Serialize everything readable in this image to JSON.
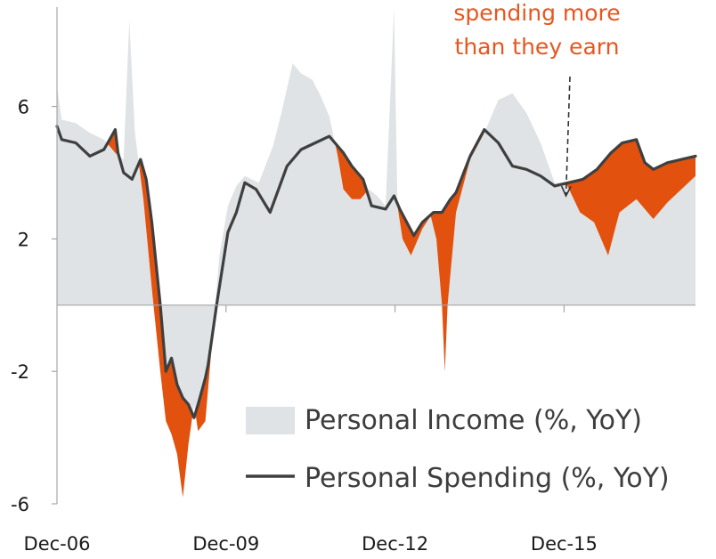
{
  "chart_data": {
    "type": "area",
    "x_tick_labels": [
      "Dec-06",
      "Dec-09",
      "Dec-12",
      "Dec-15"
    ],
    "x_tick_values": [
      2006.917,
      2009.917,
      2012.917,
      2015.917
    ],
    "xlim": [
      2006.917,
      2018.25
    ],
    "y_tick_labels": [
      "6",
      "2",
      "-2",
      "-6"
    ],
    "y_tick_values": [
      6,
      2,
      -2,
      -6
    ],
    "ylim": [
      -6,
      9
    ],
    "legend_position": "bottom-right",
    "annotation": {
      "lines": [
        "spending more",
        "than they  earn"
      ],
      "target": [
        2015.95,
        3.3
      ]
    },
    "colors": {
      "income_fill": "#dfe3e5",
      "spending_line": "#3f3f3f",
      "gap_fill": "#e2520e",
      "annotation_text": "#e8561f",
      "axis": "#a6a6a6"
    },
    "series": [
      {
        "name": "Personal Income (%, YoY)",
        "kind": "area",
        "x": [
          2006.917,
          2007.0,
          2007.25,
          2007.5,
          2007.75,
          2007.95,
          2008.1,
          2008.2,
          2008.3,
          2008.45,
          2008.6,
          2008.75,
          2008.85,
          2008.95,
          2009.05,
          2009.15,
          2009.25,
          2009.35,
          2009.42,
          2009.55,
          2009.65,
          2009.8,
          2009.95,
          2010.1,
          2010.25,
          2010.5,
          2010.75,
          2010.9,
          2011.1,
          2011.25,
          2011.45,
          2011.6,
          2011.75,
          2011.9,
          2012.0,
          2012.15,
          2012.3,
          2012.45,
          2012.6,
          2012.75,
          2012.9,
          2012.96,
          2013.05,
          2013.2,
          2013.4,
          2013.55,
          2013.65,
          2013.75,
          2013.8,
          2013.85,
          2014.0,
          2014.25,
          2014.5,
          2014.75,
          2015.0,
          2015.25,
          2015.5,
          2015.75,
          2015.95,
          2016.2,
          2016.45,
          2016.7,
          2016.9,
          2017.2,
          2017.5,
          2017.75,
          2018.0,
          2018.25
        ],
        "y": [
          6.6,
          5.6,
          5.5,
          5.2,
          5.0,
          4.6,
          4.4,
          8.6,
          5.2,
          3.2,
          0.5,
          -2.0,
          -3.5,
          -3.9,
          -4.5,
          -5.8,
          -4.2,
          -3.0,
          -3.8,
          -3.5,
          -1.5,
          1.5,
          3.0,
          3.6,
          3.9,
          3.7,
          4.8,
          5.8,
          7.3,
          7.0,
          6.8,
          6.3,
          5.7,
          4.5,
          3.5,
          3.2,
          3.2,
          3.5,
          3.3,
          3.0,
          9.0,
          3.0,
          2.0,
          1.5,
          2.3,
          2.7,
          2.0,
          0.0,
          -2.0,
          0.0,
          2.8,
          4.4,
          5.2,
          6.2,
          6.4,
          5.8,
          4.9,
          3.7,
          3.7,
          2.8,
          2.5,
          1.5,
          2.8,
          3.2,
          2.6,
          3.1,
          3.5,
          3.9
        ]
      },
      {
        "name": "Personal Spending (%, YoY)",
        "kind": "line",
        "x": [
          2006.917,
          2007.0,
          2007.25,
          2007.5,
          2007.75,
          2007.95,
          2008.0,
          2008.1,
          2008.25,
          2008.4,
          2008.5,
          2008.6,
          2008.75,
          2008.85,
          2008.95,
          2009.05,
          2009.15,
          2009.25,
          2009.35,
          2009.42,
          2009.55,
          2009.6,
          2009.75,
          2009.95,
          2010.1,
          2010.25,
          2010.45,
          2010.7,
          2011.0,
          2011.25,
          2011.5,
          2011.75,
          2012.0,
          2012.15,
          2012.35,
          2012.5,
          2012.75,
          2012.9,
          2013.0,
          2013.25,
          2013.4,
          2013.6,
          2013.75,
          2013.9,
          2014.0,
          2014.25,
          2014.5,
          2014.75,
          2015.0,
          2015.25,
          2015.5,
          2015.75,
          2016.0,
          2016.25,
          2016.5,
          2016.75,
          2016.95,
          2017.2,
          2017.35,
          2017.5,
          2017.75,
          2018.0,
          2018.25
        ],
        "y": [
          5.4,
          5.0,
          4.9,
          4.5,
          4.7,
          5.3,
          4.6,
          4.0,
          3.8,
          4.4,
          3.8,
          2.5,
          0.0,
          -2.0,
          -1.6,
          -2.4,
          -2.8,
          -3.0,
          -3.4,
          -3.0,
          -2.2,
          -1.8,
          0.0,
          2.2,
          2.8,
          3.7,
          3.5,
          2.8,
          4.2,
          4.7,
          4.9,
          5.1,
          4.6,
          4.2,
          3.8,
          3.0,
          2.9,
          3.3,
          2.9,
          2.1,
          2.5,
          2.8,
          2.8,
          3.2,
          3.4,
          4.5,
          5.3,
          4.9,
          4.2,
          4.1,
          3.9,
          3.6,
          3.7,
          3.8,
          4.1,
          4.6,
          4.9,
          5.0,
          4.3,
          4.1,
          4.3,
          4.4,
          4.5
        ]
      }
    ]
  },
  "legend": {
    "income_label": "Personal Income (%, YoY)",
    "spending_label": "Personal Spending (%, YoY)"
  }
}
